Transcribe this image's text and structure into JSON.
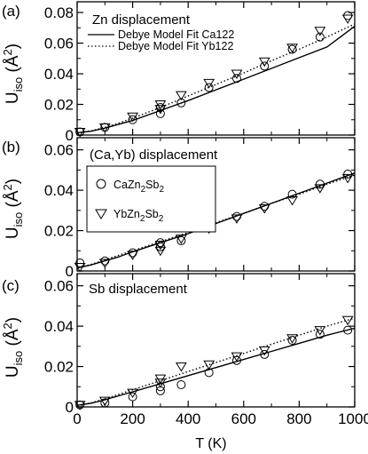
{
  "chart_data": [
    {
      "type": "scatter",
      "panel_label": "(a)",
      "title": "Zn displacement",
      "ylabel": "U_iso (Å^2)",
      "xlabel": "",
      "xlim": [
        0,
        1000
      ],
      "ylim": [
        0,
        0.087
      ],
      "xticks": [
        0,
        200,
        400,
        600,
        800,
        1000
      ],
      "yticks": [
        0,
        0.02,
        0.04,
        0.06,
        0.08
      ],
      "ytick_labels": [
        "0",
        "0.02",
        "0.04",
        "0.06",
        "0.08"
      ],
      "legend": [
        "Debye Model Fit Ca122",
        "Debye Model Fit Yb122"
      ],
      "series": [
        {
          "name": "CaZn2Sb2",
          "marker": "circle",
          "x": [
            10,
            100,
            200,
            300,
            300,
            375,
            475,
            575,
            675,
            775,
            875,
            975
          ],
          "y": [
            0.002,
            0.005,
            0.01,
            0.014,
            0.018,
            0.021,
            0.031,
            0.037,
            0.045,
            0.056,
            0.064,
            0.078
          ]
        },
        {
          "name": "YbZn2Sb2",
          "marker": "triangle-down",
          "x": [
            10,
            100,
            200,
            300,
            300,
            375,
            475,
            575,
            675,
            775,
            875,
            975
          ],
          "y": [
            0.002,
            0.005,
            0.012,
            0.017,
            0.02,
            0.026,
            0.034,
            0.04,
            0.048,
            0.057,
            0.068,
            0.076
          ]
        },
        {
          "name": "Debye Model Fit Ca122",
          "line": "solid",
          "x": [
            0,
            50,
            100,
            150,
            200,
            300,
            400,
            500,
            600,
            700,
            800,
            900,
            1000
          ],
          "y": [
            0.0015,
            0.0025,
            0.0045,
            0.007,
            0.0095,
            0.016,
            0.0225,
            0.0295,
            0.0365,
            0.0435,
            0.0505,
            0.0575,
            0.071
          ]
        },
        {
          "name": "Debye Model Fit Yb122",
          "line": "dotted",
          "x": [
            0,
            50,
            100,
            150,
            200,
            300,
            400,
            500,
            600,
            700,
            800,
            900,
            1000
          ],
          "y": [
            0.0015,
            0.0027,
            0.005,
            0.0078,
            0.011,
            0.018,
            0.0255,
            0.033,
            0.0405,
            0.0485,
            0.056,
            0.064,
            0.0725
          ]
        }
      ]
    },
    {
      "type": "scatter",
      "panel_label": "(b)",
      "title": "(Ca,Yb) displacement",
      "ylabel": "U_iso (Å^2)",
      "xlabel": "",
      "xlim": [
        0,
        1000
      ],
      "ylim": [
        0,
        0.066
      ],
      "xticks": [
        0,
        200,
        400,
        600,
        800,
        1000
      ],
      "yticks": [
        0,
        0.02,
        0.04,
        0.06
      ],
      "ytick_labels": [
        "0",
        "0.02",
        "0.04",
        "0.06"
      ],
      "legend": [
        "CaZn_2Sb_2",
        "YbZn_2Sb_2"
      ],
      "series": [
        {
          "name": "CaZn2Sb2",
          "marker": "circle",
          "x": [
            10,
            100,
            200,
            300,
            300,
            375,
            475,
            575,
            675,
            775,
            875,
            975
          ],
          "y": [
            0.004,
            0.005,
            0.009,
            0.012,
            0.014,
            0.015,
            0.022,
            0.027,
            0.032,
            0.038,
            0.043,
            0.048
          ]
        },
        {
          "name": "YbZn2Sb2",
          "marker": "triangle-down",
          "x": [
            10,
            100,
            200,
            300,
            300,
            375,
            475,
            575,
            675,
            775,
            875,
            975
          ],
          "y": [
            0.002,
            0.004,
            0.008,
            0.01,
            0.013,
            0.016,
            0.021,
            0.026,
            0.031,
            0.035,
            0.041,
            0.046
          ]
        },
        {
          "name": "Debye Model Fit Ca122",
          "line": "solid",
          "x": [
            0,
            50,
            100,
            150,
            200,
            300,
            400,
            500,
            600,
            700,
            800,
            900,
            1000
          ],
          "y": [
            0.0015,
            0.003,
            0.005,
            0.007,
            0.0095,
            0.014,
            0.0185,
            0.0235,
            0.0285,
            0.0335,
            0.0385,
            0.0435,
            0.0485
          ]
        },
        {
          "name": "Debye Model Fit Yb122",
          "line": "dotted",
          "x": [
            0,
            50,
            100,
            150,
            200,
            300,
            400,
            500,
            600,
            700,
            800,
            900,
            1000
          ],
          "y": [
            0.0015,
            0.0032,
            0.0055,
            0.0078,
            0.01,
            0.0145,
            0.019,
            0.024,
            0.0285,
            0.0335,
            0.038,
            0.043,
            0.0475
          ]
        }
      ]
    },
    {
      "type": "scatter",
      "panel_label": "(c)",
      "title": "Sb displacement",
      "ylabel": "U_iso (Å^2)",
      "xlabel": "T (K)",
      "xlim": [
        0,
        1000
      ],
      "ylim": [
        0,
        0.066
      ],
      "xticks": [
        0,
        200,
        400,
        600,
        800,
        1000
      ],
      "xtick_labels": [
        "0",
        "200",
        "400",
        "600",
        "800",
        "1000"
      ],
      "yticks": [
        0,
        0.02,
        0.04,
        0.06
      ],
      "ytick_labels": [
        "0",
        "0.02",
        "0.04",
        "0.06"
      ],
      "series": [
        {
          "name": "CaZn2Sb2",
          "marker": "circle",
          "x": [
            10,
            100,
            200,
            300,
            300,
            375,
            475,
            575,
            675,
            775,
            875,
            975
          ],
          "y": [
            0.001,
            0.002,
            0.005,
            0.008,
            0.01,
            0.011,
            0.017,
            0.023,
            0.026,
            0.033,
            0.036,
            0.038
          ]
        },
        {
          "name": "YbZn2Sb2",
          "marker": "triangle-down",
          "x": [
            10,
            100,
            200,
            300,
            300,
            375,
            475,
            575,
            675,
            775,
            875,
            975
          ],
          "y": [
            0.001,
            0.003,
            0.007,
            0.012,
            0.014,
            0.02,
            0.021,
            0.025,
            0.028,
            0.034,
            0.038,
            0.043
          ]
        },
        {
          "name": "Debye Model Fit Ca122",
          "line": "solid",
          "x": [
            0,
            50,
            100,
            150,
            200,
            300,
            400,
            500,
            600,
            700,
            800,
            900,
            1000
          ],
          "y": [
            0.0008,
            0.0018,
            0.0035,
            0.0055,
            0.0075,
            0.0115,
            0.0155,
            0.0195,
            0.0235,
            0.0275,
            0.0315,
            0.0355,
            0.039
          ]
        },
        {
          "name": "Debye Model Fit Yb122",
          "line": "dotted",
          "x": [
            0,
            50,
            100,
            150,
            200,
            300,
            400,
            500,
            600,
            700,
            800,
            900,
            1000
          ],
          "y": [
            0.0008,
            0.002,
            0.004,
            0.0062,
            0.0085,
            0.013,
            0.0175,
            0.022,
            0.0265,
            0.031,
            0.0355,
            0.04,
            0.044
          ]
        }
      ]
    }
  ]
}
